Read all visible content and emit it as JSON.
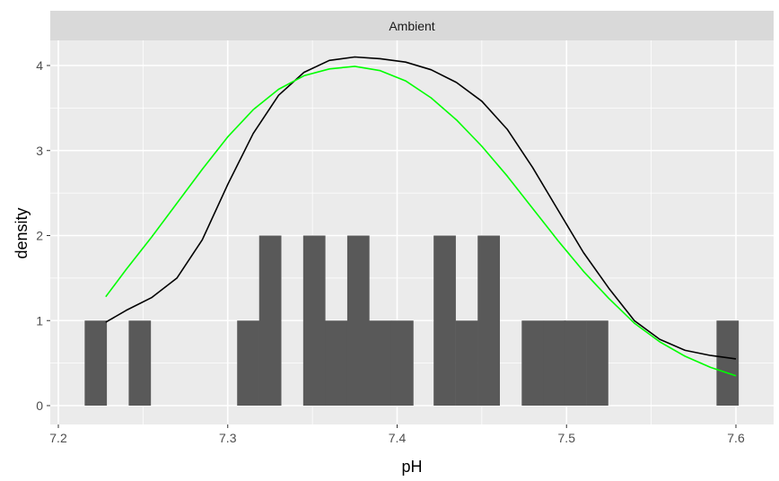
{
  "chart_data": {
    "type": "bar",
    "facet_label": "Ambient",
    "xlabel": "pH",
    "ylabel": "density",
    "xlim": [
      7.2,
      7.6
    ],
    "ylim": [
      0,
      4
    ],
    "x_ticks": [
      "7.2",
      "7.3",
      "7.4",
      "7.5",
      "7.6"
    ],
    "y_ticks": [
      "0",
      "1",
      "2",
      "3",
      "4"
    ],
    "grid": true,
    "bin_width": 0.0129,
    "bins": [
      {
        "x": 7.222,
        "y": 1
      },
      {
        "x": 7.248,
        "y": 1
      },
      {
        "x": 7.312,
        "y": 1
      },
      {
        "x": 7.325,
        "y": 2
      },
      {
        "x": 7.351,
        "y": 2
      },
      {
        "x": 7.364,
        "y": 1
      },
      {
        "x": 7.377,
        "y": 2
      },
      {
        "x": 7.39,
        "y": 1
      },
      {
        "x": 7.403,
        "y": 1
      },
      {
        "x": 7.428,
        "y": 2
      },
      {
        "x": 7.441,
        "y": 1
      },
      {
        "x": 7.454,
        "y": 2
      },
      {
        "x": 7.48,
        "y": 1
      },
      {
        "x": 7.493,
        "y": 1
      },
      {
        "x": 7.505,
        "y": 1
      },
      {
        "x": 7.518,
        "y": 1
      },
      {
        "x": 7.595,
        "y": 1
      }
    ],
    "series": [
      {
        "color": "#000000",
        "x": [
          7.228,
          7.24,
          7.255,
          7.27,
          7.285,
          7.3,
          7.315,
          7.33,
          7.345,
          7.36,
          7.375,
          7.39,
          7.405,
          7.42,
          7.435,
          7.45,
          7.465,
          7.48,
          7.495,
          7.51,
          7.525,
          7.54,
          7.555,
          7.57,
          7.585,
          7.6
        ],
        "y": [
          0.98,
          1.12,
          1.27,
          1.5,
          1.95,
          2.6,
          3.2,
          3.65,
          3.92,
          4.06,
          4.1,
          4.08,
          4.04,
          3.95,
          3.8,
          3.58,
          3.25,
          2.8,
          2.3,
          1.8,
          1.38,
          1.0,
          0.78,
          0.65,
          0.59,
          0.55
        ]
      },
      {
        "color": "#00ff00",
        "x": [
          7.228,
          7.24,
          7.255,
          7.27,
          7.285,
          7.3,
          7.315,
          7.33,
          7.345,
          7.36,
          7.375,
          7.39,
          7.405,
          7.42,
          7.435,
          7.45,
          7.465,
          7.48,
          7.495,
          7.51,
          7.525,
          7.54,
          7.555,
          7.57,
          7.585,
          7.6
        ],
        "y": [
          1.28,
          1.6,
          1.98,
          2.38,
          2.78,
          3.16,
          3.48,
          3.72,
          3.88,
          3.96,
          3.99,
          3.94,
          3.82,
          3.62,
          3.36,
          3.05,
          2.7,
          2.32,
          1.94,
          1.58,
          1.26,
          0.97,
          0.75,
          0.58,
          0.45,
          0.35
        ]
      }
    ]
  }
}
